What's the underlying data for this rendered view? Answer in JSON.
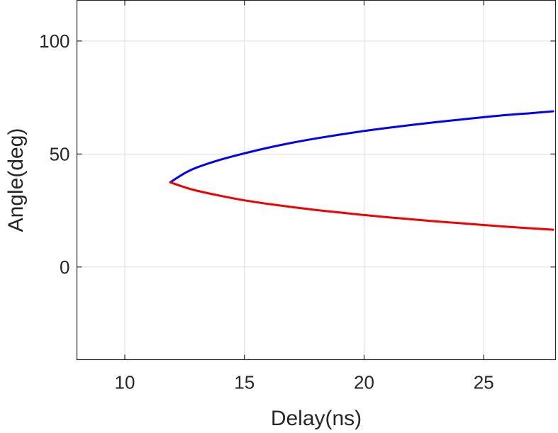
{
  "chart_data": {
    "type": "line",
    "title": "",
    "xlabel": "Delay(ns)",
    "ylabel": "Angle(deg)",
    "xlim": [
      8,
      28
    ],
    "ylim": [
      -41,
      118
    ],
    "xticks": [
      10,
      15,
      20,
      25
    ],
    "yticks": [
      0,
      50,
      100
    ],
    "grid": true,
    "legend": "none",
    "series": [
      {
        "color": "#0000ee",
        "x": [
          11.9,
          12.5,
          13,
          14,
          15,
          16,
          17,
          18,
          19,
          20,
          21,
          22,
          23,
          24,
          25,
          26,
          27,
          27.9
        ],
        "y": [
          37.5,
          41.5,
          44,
          47.5,
          50.3,
          52.8,
          55,
          56.9,
          58.6,
          60.2,
          61.6,
          62.9,
          64.1,
          65.2,
          66.3,
          67.3,
          68.1,
          68.9
        ]
      },
      {
        "color": "#ee0000",
        "x": [
          11.9,
          12.5,
          13,
          14,
          15,
          16,
          17,
          18,
          19,
          20,
          21,
          22,
          23,
          24,
          25,
          26,
          27,
          27.9
        ],
        "y": [
          37.5,
          35.3,
          33.8,
          31.5,
          29.5,
          27.9,
          26.5,
          25.2,
          24.1,
          23,
          22,
          21.1,
          20.2,
          19.4,
          18.6,
          17.8,
          17.1,
          16.5
        ]
      }
    ]
  }
}
